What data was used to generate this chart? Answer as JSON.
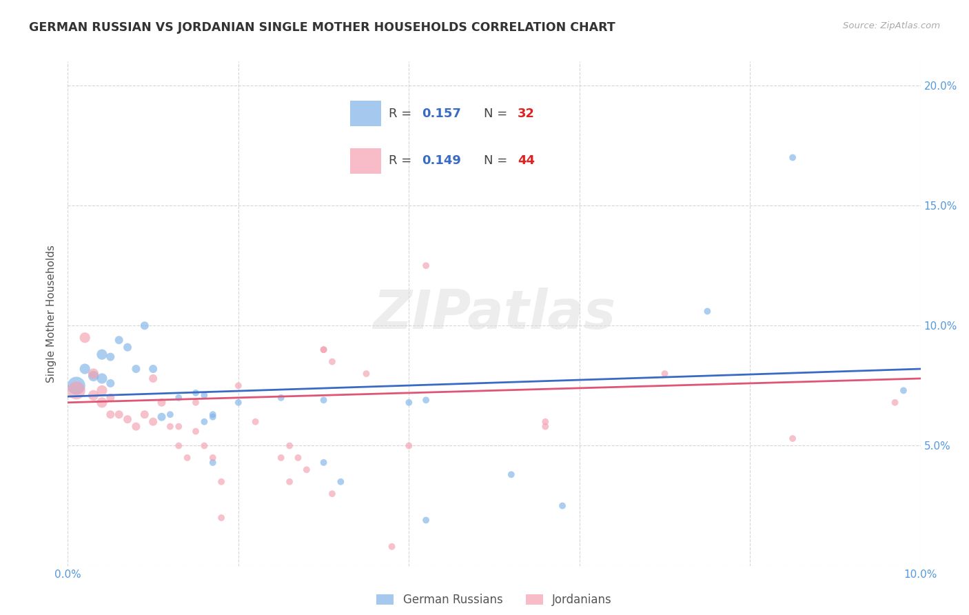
{
  "title": "GERMAN RUSSIAN VS JORDANIAN SINGLE MOTHER HOUSEHOLDS CORRELATION CHART",
  "source": "Source: ZipAtlas.com",
  "ylabel": "Single Mother Households",
  "xlim": [
    0.0,
    0.1
  ],
  "ylim": [
    0.0,
    0.21
  ],
  "xticks": [
    0.0,
    0.02,
    0.04,
    0.06,
    0.08,
    0.1
  ],
  "yticks": [
    0.0,
    0.05,
    0.1,
    0.15,
    0.2
  ],
  "xtick_labels": [
    "0.0%",
    "",
    "",
    "",
    "",
    "10.0%"
  ],
  "ytick_labels": [
    "",
    "5.0%",
    "10.0%",
    "15.0%",
    "20.0%"
  ],
  "tick_color": "#5599DD",
  "blue_color": "#7FB3E8",
  "pink_color": "#F4A0B0",
  "blue_line_color": "#3A6BC4",
  "pink_line_color": "#E05575",
  "legend_label_blue": "German Russians",
  "legend_label_pink": "Jordanians",
  "watermark": "ZIPatlas",
  "background_color": "#FFFFFF",
  "grid_color": "#CCCCCC",
  "blue_scatter": [
    [
      0.001,
      0.075
    ],
    [
      0.002,
      0.082
    ],
    [
      0.003,
      0.079
    ],
    [
      0.004,
      0.078
    ],
    [
      0.004,
      0.088
    ],
    [
      0.005,
      0.087
    ],
    [
      0.005,
      0.076
    ],
    [
      0.006,
      0.094
    ],
    [
      0.007,
      0.091
    ],
    [
      0.008,
      0.082
    ],
    [
      0.009,
      0.1
    ],
    [
      0.01,
      0.082
    ],
    [
      0.011,
      0.062
    ],
    [
      0.012,
      0.063
    ],
    [
      0.013,
      0.07
    ],
    [
      0.015,
      0.072
    ],
    [
      0.016,
      0.071
    ],
    [
      0.016,
      0.06
    ],
    [
      0.017,
      0.062
    ],
    [
      0.017,
      0.063
    ],
    [
      0.017,
      0.043
    ],
    [
      0.02,
      0.068
    ],
    [
      0.025,
      0.07
    ],
    [
      0.03,
      0.069
    ],
    [
      0.03,
      0.043
    ],
    [
      0.032,
      0.035
    ],
    [
      0.04,
      0.068
    ],
    [
      0.042,
      0.069
    ],
    [
      0.042,
      0.019
    ],
    [
      0.052,
      0.038
    ],
    [
      0.058,
      0.025
    ],
    [
      0.075,
      0.106
    ],
    [
      0.085,
      0.17
    ],
    [
      0.098,
      0.073
    ]
  ],
  "pink_scatter": [
    [
      0.001,
      0.073
    ],
    [
      0.002,
      0.095
    ],
    [
      0.003,
      0.08
    ],
    [
      0.003,
      0.071
    ],
    [
      0.004,
      0.073
    ],
    [
      0.004,
      0.068
    ],
    [
      0.005,
      0.07
    ],
    [
      0.005,
      0.063
    ],
    [
      0.006,
      0.063
    ],
    [
      0.007,
      0.061
    ],
    [
      0.008,
      0.058
    ],
    [
      0.009,
      0.063
    ],
    [
      0.01,
      0.078
    ],
    [
      0.01,
      0.06
    ],
    [
      0.011,
      0.068
    ],
    [
      0.012,
      0.058
    ],
    [
      0.013,
      0.058
    ],
    [
      0.013,
      0.05
    ],
    [
      0.014,
      0.045
    ],
    [
      0.015,
      0.068
    ],
    [
      0.015,
      0.056
    ],
    [
      0.016,
      0.05
    ],
    [
      0.017,
      0.045
    ],
    [
      0.018,
      0.035
    ],
    [
      0.018,
      0.02
    ],
    [
      0.02,
      0.075
    ],
    [
      0.022,
      0.06
    ],
    [
      0.025,
      0.045
    ],
    [
      0.026,
      0.035
    ],
    [
      0.026,
      0.05
    ],
    [
      0.027,
      0.045
    ],
    [
      0.028,
      0.04
    ],
    [
      0.03,
      0.09
    ],
    [
      0.03,
      0.09
    ],
    [
      0.031,
      0.085
    ],
    [
      0.031,
      0.03
    ],
    [
      0.035,
      0.08
    ],
    [
      0.038,
      0.008
    ],
    [
      0.04,
      0.05
    ],
    [
      0.042,
      0.125
    ],
    [
      0.056,
      0.06
    ],
    [
      0.056,
      0.058
    ],
    [
      0.07,
      0.08
    ],
    [
      0.085,
      0.053
    ],
    [
      0.097,
      0.068
    ]
  ],
  "blue_line_x": [
    0.0,
    0.1
  ],
  "blue_line_y": [
    0.0705,
    0.082
  ],
  "pink_line_x": [
    0.0,
    0.1
  ],
  "pink_line_y": [
    0.068,
    0.078
  ]
}
